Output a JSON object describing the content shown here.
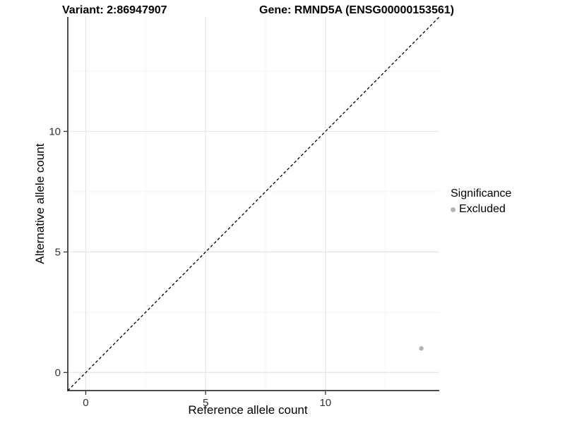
{
  "chart_data": {
    "type": "scatter",
    "title_left": "Variant: 2:86947907",
    "title_right": "Gene: RMND5A (ENSG00000153561)",
    "xlabel": "Reference allele count",
    "ylabel": "Alternative allele count",
    "xlim": [
      -0.75,
      14.75
    ],
    "ylim": [
      -0.75,
      14.75
    ],
    "x_major_ticks": [
      0,
      5,
      10
    ],
    "y_major_ticks": [
      0,
      5,
      10
    ],
    "x_minor_ticks": [
      2.5,
      7.5,
      12.5
    ],
    "y_minor_ticks": [
      2.5,
      7.5,
      12.5
    ],
    "grid": true,
    "identity_line": {
      "style": "dashed",
      "color": "#000000",
      "slope": 1,
      "intercept": 0
    },
    "series": [
      {
        "name": "Excluded",
        "color": "#b4b4b4",
        "points": [
          {
            "x": 14,
            "y": 1
          }
        ]
      }
    ],
    "legend": {
      "title": "Significance",
      "position": "right",
      "items": [
        {
          "label": "Excluded",
          "color": "#b4b4b4"
        }
      ]
    },
    "style": {
      "grid_major_color": "#e6e6e6",
      "grid_minor_color": "#f3f3f3",
      "axis_line_color": "#4d4d4d",
      "tick_mark_color": "#333333",
      "tick_label_color": "#303030"
    }
  }
}
